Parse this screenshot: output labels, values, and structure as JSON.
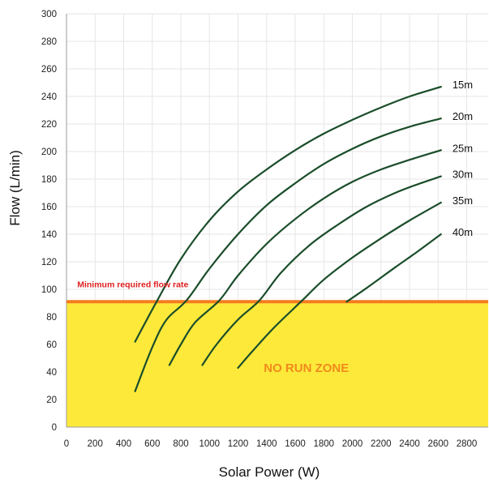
{
  "chart_data": {
    "type": "line",
    "xlabel": "Solar Power (W)",
    "ylabel": "Flow (L/min)",
    "xlim": [
      0,
      2950
    ],
    "ylim": [
      0,
      300
    ],
    "x_ticks": [
      0,
      200,
      400,
      600,
      800,
      1000,
      1200,
      1400,
      1600,
      1800,
      2000,
      2200,
      2400,
      2600,
      2800
    ],
    "y_ticks": [
      0,
      20,
      40,
      60,
      80,
      100,
      120,
      140,
      160,
      180,
      200,
      220,
      240,
      260,
      280,
      300
    ],
    "grid": true,
    "threshold": {
      "y": 91,
      "label": "Minimum required flow rate",
      "color": "#f47c20"
    },
    "zone": {
      "y_from": 0,
      "y_to": 91,
      "label": "NO RUN ZONE",
      "color": "#fde93a"
    },
    "series": [
      {
        "name": "15m",
        "color": "#1a4d2a",
        "points": [
          [
            480,
            62
          ],
          [
            630,
            91
          ],
          [
            800,
            122
          ],
          [
            1000,
            150
          ],
          [
            1200,
            171
          ],
          [
            1400,
            187
          ],
          [
            1600,
            201
          ],
          [
            1800,
            213
          ],
          [
            2000,
            223
          ],
          [
            2200,
            232
          ],
          [
            2400,
            240
          ],
          [
            2620,
            247
          ]
        ]
      },
      {
        "name": "20m",
        "color": "#1a4d2a",
        "points": [
          [
            480,
            26
          ],
          [
            600,
            58
          ],
          [
            700,
            78
          ],
          [
            840,
            92
          ],
          [
            1000,
            115
          ],
          [
            1200,
            140
          ],
          [
            1400,
            161
          ],
          [
            1600,
            177
          ],
          [
            1800,
            191
          ],
          [
            2000,
            202
          ],
          [
            2200,
            211
          ],
          [
            2400,
            218
          ],
          [
            2620,
            224
          ]
        ]
      },
      {
        "name": "25m",
        "color": "#1a4d2a",
        "points": [
          [
            720,
            45
          ],
          [
            800,
            60
          ],
          [
            900,
            76
          ],
          [
            1070,
            92
          ],
          [
            1200,
            110
          ],
          [
            1400,
            133
          ],
          [
            1600,
            151
          ],
          [
            1800,
            166
          ],
          [
            2000,
            178
          ],
          [
            2200,
            187
          ],
          [
            2400,
            194
          ],
          [
            2620,
            201
          ]
        ]
      },
      {
        "name": "30m",
        "color": "#1a4d2a",
        "points": [
          [
            950,
            45
          ],
          [
            1050,
            60
          ],
          [
            1200,
            78
          ],
          [
            1350,
            92
          ],
          [
            1500,
            112
          ],
          [
            1700,
            132
          ],
          [
            1900,
            147
          ],
          [
            2100,
            160
          ],
          [
            2300,
            170
          ],
          [
            2450,
            176
          ],
          [
            2620,
            182
          ]
        ]
      },
      {
        "name": "35m",
        "color": "#1a4d2a",
        "points": [
          [
            1200,
            43
          ],
          [
            1300,
            55
          ],
          [
            1450,
            72
          ],
          [
            1650,
            92
          ],
          [
            1800,
            107
          ],
          [
            2000,
            123
          ],
          [
            2200,
            137
          ],
          [
            2400,
            150
          ],
          [
            2620,
            163
          ]
        ]
      },
      {
        "name": "40m",
        "color": "#1a4d2a",
        "points": [
          [
            1960,
            91
          ],
          [
            2100,
            101
          ],
          [
            2300,
            116
          ],
          [
            2450,
            127
          ],
          [
            2620,
            140
          ]
        ]
      }
    ]
  }
}
